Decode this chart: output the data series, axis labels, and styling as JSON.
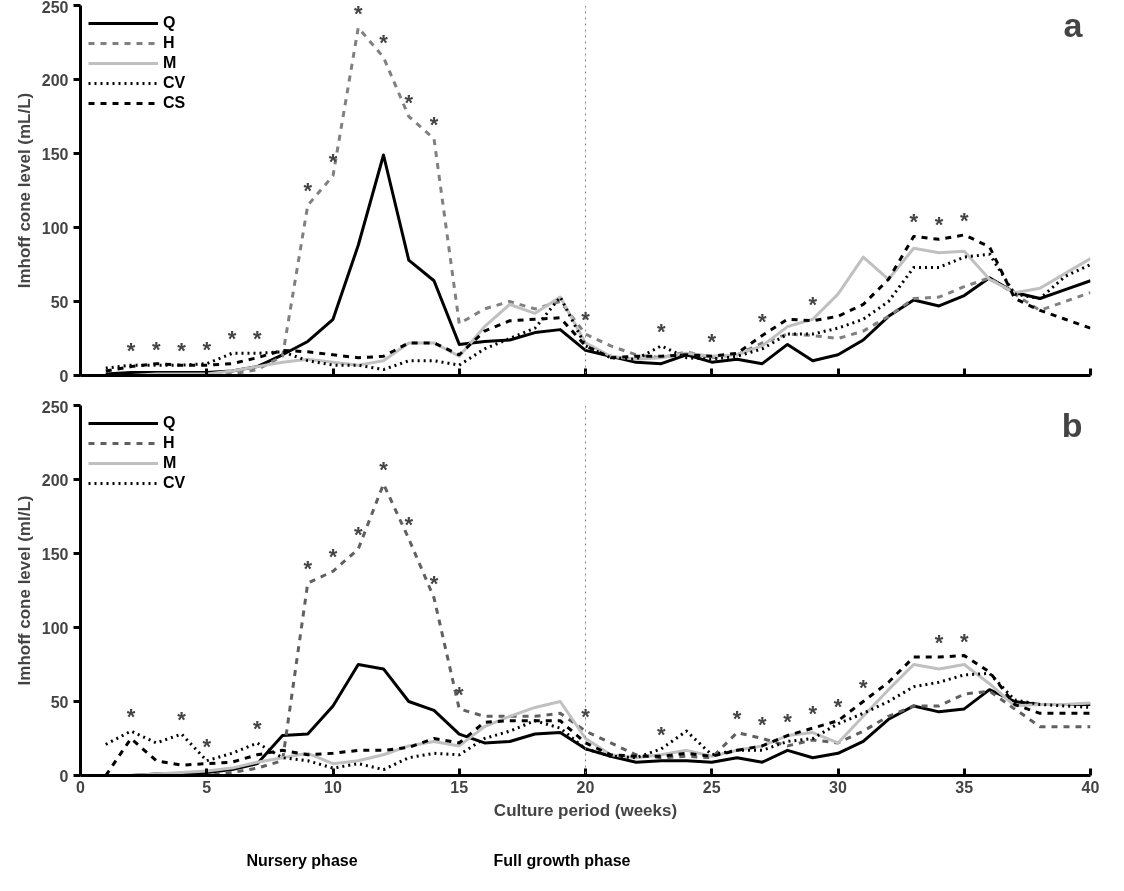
{
  "chart_data": [
    {
      "type": "line",
      "title": "a",
      "ylabel": "Imhoff cone level (mL/L)",
      "x": [
        1,
        2,
        3,
        4,
        5,
        6,
        7,
        8,
        9,
        10,
        11,
        12,
        13,
        14,
        15,
        16,
        17,
        18,
        19,
        20,
        21,
        22,
        23,
        24,
        25,
        26,
        27,
        28,
        29,
        30,
        31,
        32,
        33,
        34,
        35,
        36,
        37,
        38,
        39,
        40
      ],
      "xlim": [
        0,
        40
      ],
      "xticks": [
        0,
        5,
        10,
        15,
        20,
        25,
        30,
        35,
        40
      ],
      "ylim": [
        0,
        250
      ],
      "yticks": [
        0,
        50,
        100,
        150,
        200,
        250
      ],
      "tick_labels": "y",
      "grid": false,
      "legend": "top left",
      "marker": "none",
      "series": [
        {
          "name": "Q",
          "color": "#000000",
          "line_style": "solid",
          "values": [
            1,
            2,
            2,
            2,
            2,
            3,
            6,
            14,
            23,
            38,
            88,
            149,
            78,
            64,
            21,
            23,
            24,
            29,
            31,
            17,
            13,
            9,
            8,
            14,
            9,
            11,
            8,
            21,
            10,
            14,
            24,
            40,
            51,
            47,
            54,
            66,
            56,
            52,
            58,
            64
          ]
        },
        {
          "name": "H",
          "color": "#808080",
          "line_style": "dashed",
          "values": [
            0,
            0,
            0,
            0,
            0,
            1,
            4,
            13,
            115,
            135,
            235,
            215,
            175,
            160,
            35,
            45,
            50,
            45,
            50,
            28,
            20,
            14,
            12,
            16,
            12,
            14,
            22,
            28,
            27,
            25,
            30,
            40,
            52,
            53,
            60,
            66,
            55,
            44,
            50,
            56
          ]
        },
        {
          "name": "M",
          "color": "#c0c0c0",
          "line_style": "solid",
          "values": [
            0,
            0,
            1,
            1,
            1,
            3,
            6,
            9,
            11,
            9,
            7,
            10,
            22,
            22,
            13,
            33,
            48,
            42,
            53,
            22,
            13,
            11,
            12,
            15,
            13,
            14,
            20,
            33,
            38,
            55,
            80,
            65,
            86,
            83,
            84,
            65,
            56,
            59,
            69,
            79
          ]
        },
        {
          "name": "CV",
          "color": "#000000",
          "line_style": "dotted",
          "values": [
            5,
            7,
            7,
            7,
            8,
            15,
            15,
            16,
            10,
            7,
            7,
            4,
            10,
            10,
            7,
            18,
            25,
            32,
            53,
            20,
            12,
            11,
            20,
            12,
            11,
            13,
            18,
            28,
            28,
            32,
            38,
            50,
            73,
            73,
            80,
            82,
            55,
            52,
            67,
            75
          ]
        },
        {
          "name": "CS",
          "color": "#000000",
          "line_style": "dashed",
          "values": [
            3,
            6,
            8,
            7,
            7,
            8,
            12,
            17,
            16,
            14,
            12,
            13,
            22,
            22,
            14,
            30,
            37,
            38,
            39,
            20,
            12,
            13,
            13,
            14,
            13,
            15,
            27,
            38,
            37,
            40,
            48,
            65,
            94,
            92,
            95,
            87,
            52,
            44,
            38,
            32
          ]
        }
      ],
      "ref_lines": [
        {
          "axis": "x",
          "value": 20,
          "color": "#808080",
          "line_style": "dotted"
        }
      ],
      "annotations": [
        {
          "text": "*",
          "x": 2,
          "y": 7
        },
        {
          "text": "*",
          "x": 3,
          "y": 8
        },
        {
          "text": "*",
          "x": 4,
          "y": 7
        },
        {
          "text": "*",
          "x": 5,
          "y": 8
        },
        {
          "text": "*",
          "x": 6,
          "y": 15
        },
        {
          "text": "*",
          "x": 7,
          "y": 15
        },
        {
          "text": "*",
          "x": 9,
          "y": 115
        },
        {
          "text": "*",
          "x": 10,
          "y": 135
        },
        {
          "text": "*",
          "x": 11,
          "y": 235
        },
        {
          "text": "*",
          "x": 12,
          "y": 215
        },
        {
          "text": "*",
          "x": 13,
          "y": 175
        },
        {
          "text": "*",
          "x": 14,
          "y": 160
        },
        {
          "text": "*",
          "x": 20,
          "y": 28
        },
        {
          "text": "*",
          "x": 23,
          "y": 20
        },
        {
          "text": "*",
          "x": 25,
          "y": 13
        },
        {
          "text": "*",
          "x": 27,
          "y": 27
        },
        {
          "text": "*",
          "x": 29,
          "y": 38
        },
        {
          "text": "*",
          "x": 33,
          "y": 94
        },
        {
          "text": "*",
          "x": 34,
          "y": 92
        },
        {
          "text": "*",
          "x": 35,
          "y": 95
        }
      ]
    },
    {
      "type": "line",
      "title": "b",
      "xlabel": "Culture period (weeks)",
      "ylabel": "Imhoff cone level (ml/L)",
      "x": [
        1,
        2,
        3,
        4,
        5,
        6,
        7,
        8,
        9,
        10,
        11,
        12,
        13,
        14,
        15,
        16,
        17,
        18,
        19,
        20,
        21,
        22,
        23,
        24,
        25,
        26,
        27,
        28,
        29,
        30,
        31,
        32,
        33,
        34,
        35,
        36,
        37,
        38,
        39,
        40
      ],
      "xlim": [
        0,
        40
      ],
      "xticks": [
        0,
        5,
        10,
        15,
        20,
        25,
        30,
        35,
        40
      ],
      "ylim": [
        0,
        250
      ],
      "yticks": [
        0,
        50,
        100,
        150,
        200,
        250
      ],
      "grid": false,
      "legend": "top left",
      "marker": "none",
      "series": [
        {
          "name": "Q",
          "color": "#000000",
          "line_style": "solid",
          "values": [
            0,
            0,
            1,
            1,
            2,
            4,
            8,
            27,
            28,
            47,
            75,
            72,
            50,
            44,
            28,
            22,
            23,
            28,
            29,
            18,
            13,
            9,
            10,
            10,
            9,
            12,
            9,
            17,
            12,
            15,
            23,
            38,
            47,
            43,
            45,
            58,
            50,
            48,
            48,
            48
          ]
        },
        {
          "name": "H",
          "color": "#606060",
          "line_style": "dashed",
          "values": [
            0,
            0,
            0,
            0,
            0,
            2,
            5,
            10,
            130,
            138,
            153,
            197,
            160,
            120,
            45,
            40,
            40,
            40,
            42,
            30,
            22,
            14,
            12,
            13,
            12,
            29,
            25,
            20,
            24,
            22,
            30,
            40,
            47,
            47,
            55,
            57,
            45,
            33,
            33,
            33
          ]
        },
        {
          "name": "M",
          "color": "#c0c0c0",
          "line_style": "solid",
          "values": [
            0,
            0,
            1,
            2,
            3,
            5,
            9,
            12,
            15,
            8,
            10,
            14,
            20,
            23,
            20,
            33,
            40,
            46,
            50,
            25,
            14,
            12,
            14,
            17,
            13,
            17,
            20,
            27,
            29,
            22,
            40,
            58,
            75,
            72,
            75,
            62,
            47,
            48,
            48,
            49
          ]
        },
        {
          "name": "CV",
          "color": "#000000",
          "line_style": "dotted",
          "values": [
            21,
            30,
            22,
            28,
            10,
            15,
            22,
            12,
            10,
            5,
            8,
            4,
            12,
            15,
            14,
            25,
            30,
            37,
            32,
            18,
            13,
            12,
            18,
            30,
            14,
            17,
            17,
            23,
            25,
            35,
            42,
            50,
            60,
            63,
            68,
            69,
            51,
            48,
            47,
            46
          ]
        },
        {
          "color": "#000000",
          "line_style": "dashed",
          "values": [
            0,
            25,
            10,
            7,
            8,
            9,
            14,
            17,
            14,
            15,
            17,
            17,
            19,
            25,
            22,
            36,
            37,
            37,
            37,
            22,
            14,
            13,
            13,
            15,
            13,
            17,
            20,
            27,
            32,
            37,
            50,
            63,
            80,
            80,
            81,
            70,
            48,
            42,
            42,
            42
          ]
        }
      ],
      "ref_lines": [
        {
          "axis": "x",
          "value": 20,
          "color": "#808080",
          "line_style": "dotted"
        }
      ],
      "annotations": [
        {
          "text": "*",
          "x": 2,
          "y": 30
        },
        {
          "text": "*",
          "x": 4,
          "y": 28
        },
        {
          "text": "*",
          "x": 5,
          "y": 10
        },
        {
          "text": "*",
          "x": 7,
          "y": 22
        },
        {
          "text": "*",
          "x": 9,
          "y": 130
        },
        {
          "text": "*",
          "x": 10,
          "y": 138
        },
        {
          "text": "*",
          "x": 11,
          "y": 153
        },
        {
          "text": "*",
          "x": 12,
          "y": 197
        },
        {
          "text": "*",
          "x": 13,
          "y": 160
        },
        {
          "text": "*",
          "x": 14,
          "y": 120
        },
        {
          "text": "*",
          "x": 15,
          "y": 45
        },
        {
          "text": "*",
          "x": 20,
          "y": 30
        },
        {
          "text": "*",
          "x": 23,
          "y": 18
        },
        {
          "text": "*",
          "x": 26,
          "y": 29
        },
        {
          "text": "*",
          "x": 27,
          "y": 25
        },
        {
          "text": "*",
          "x": 28,
          "y": 27
        },
        {
          "text": "*",
          "x": 29,
          "y": 32
        },
        {
          "text": "*",
          "x": 30,
          "y": 37
        },
        {
          "text": "*",
          "x": 31,
          "y": 50
        },
        {
          "text": "*",
          "x": 34,
          "y": 80
        },
        {
          "text": "*",
          "x": 35,
          "y": 81
        },
        "Nursery phase",
        "Full growth phase"
      ]
    }
  ]
}
